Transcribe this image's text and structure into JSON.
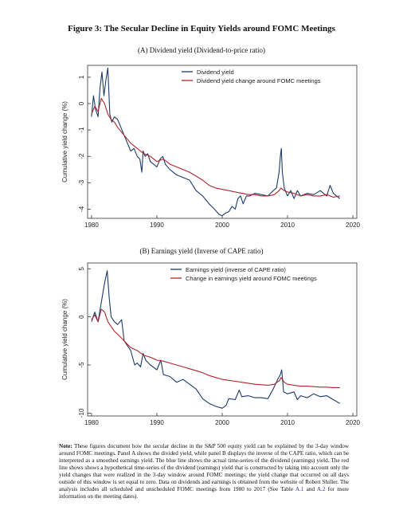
{
  "figure_title": "Figure 3: The Secular Decline in Equity Yields around FOMC Meetings",
  "note": {
    "label": "Note:",
    "text": " These figures document how the secular decline in the S&P 500 equity yield can be explained by the 3-day window around FOMC meetings. Panel A shows the divided yield, while panel B displays the inverse of the CAPE ratio, which can be interpreted as a smoothed earnings yield. The blue line shows the actual time-series of the dividend (earnings) yield. The red line shows shows a hypothetical time-series of the dividend (earnings) yield that is constructed by taking into account only the yield changes that were realized in the 3-day window around FOMC meetings; the yield change that occurred on all days outside of this window is set equal to zero. Data on dividends and earnings is obtained from the website of Robert Shiller. The analysis includes all scheduled and unscheduled FOMC meetings from 1980 to 2017 (See Table ",
    "ref1": "A.1",
    "mid": " and ",
    "ref2": "A.2",
    "tail": " for more information on the meeting dates)."
  },
  "colors": {
    "blue": "#1c3a6b",
    "red": "#b0262c",
    "axis": "#333333"
  },
  "chart_data": [
    {
      "type": "line",
      "title": "(A) Dividend yield (Dividend-to-price ratio)",
      "ylabel": "Cumulative yield change (%)",
      "xlabel": "",
      "xlim": [
        1979.4,
        2020.6
      ],
      "ylim": [
        -4.35,
        1.45
      ],
      "xticks": [
        1980,
        1990,
        2000,
        2010,
        2020
      ],
      "yticks": [
        1,
        0,
        -1,
        -2,
        -3,
        -4
      ],
      "legend_position": "top-right",
      "series": [
        {
          "name": "Dividend yield",
          "color": "#1c3a6b",
          "x": [
            1980,
            1980.3,
            1980.6,
            1981,
            1981.3,
            1981.6,
            1981.9,
            1982.2,
            1982.5,
            1982.8,
            1983.1,
            1983.5,
            1984,
            1984.5,
            1985,
            1985.5,
            1986,
            1986.5,
            1987,
            1987.4,
            1987.7,
            1987.9,
            1988.2,
            1988.6,
            1989,
            1989.5,
            1990,
            1990.5,
            1990.9,
            1991.3,
            1992,
            1993,
            1994,
            1995,
            1996,
            1997,
            1998,
            1998.8,
            1999.5,
            2000,
            2000.5,
            2001,
            2001.5,
            2002,
            2002.4,
            2002.8,
            2003.2,
            2003.7,
            2004.2,
            2005,
            2006,
            2007,
            2007.8,
            2008.3,
            2008.7,
            2008.9,
            2009.05,
            2009.2,
            2009.5,
            2010,
            2010.5,
            2011,
            2011.5,
            2012,
            2013,
            2014,
            2015,
            2016,
            2016.5,
            2017,
            2017.5,
            2018
          ],
          "y": [
            -0.5,
            0.3,
            -0.2,
            -0.5,
            0.6,
            1.2,
            0.3,
            0.9,
            1.35,
            -0.4,
            -0.7,
            -0.5,
            -0.6,
            -0.9,
            -1.2,
            -1.5,
            -1.8,
            -1.7,
            -2.0,
            -2.1,
            -2.6,
            -1.8,
            -2.0,
            -1.9,
            -2.2,
            -2.3,
            -2.4,
            -2.1,
            -2.0,
            -2.3,
            -2.5,
            -2.7,
            -2.8,
            -2.9,
            -3.3,
            -3.5,
            -3.8,
            -4.0,
            -4.2,
            -4.25,
            -4.15,
            -4.1,
            -3.9,
            -4.0,
            -3.6,
            -3.5,
            -3.8,
            -3.5,
            -3.5,
            -3.4,
            -3.45,
            -3.5,
            -3.3,
            -3.2,
            -2.6,
            -2.0,
            -1.7,
            -2.6,
            -3.2,
            -3.5,
            -3.3,
            -3.6,
            -3.3,
            -3.5,
            -3.4,
            -3.45,
            -3.3,
            -3.5,
            -3.1,
            -3.4,
            -3.5,
            -3.6
          ]
        },
        {
          "name": "Dividend yield change around FOMC meetings",
          "color": "#b0262c",
          "x": [
            1980,
            1980.5,
            1981,
            1981.5,
            1982,
            1982.5,
            1983,
            1983.5,
            1984,
            1985,
            1986,
            1987,
            1988,
            1989,
            1990,
            1991,
            1992,
            1993,
            1994,
            1995,
            1996,
            1997,
            1998,
            1999,
            2000,
            2001,
            2002,
            2003,
            2004,
            2005,
            2006,
            2007,
            2008,
            2008.7,
            2009,
            2009.5,
            2010,
            2011,
            2012,
            2013,
            2014,
            2015,
            2016,
            2017,
            2018
          ],
          "y": [
            -0.4,
            -0.1,
            -0.3,
            0.2,
            0.0,
            -0.4,
            -0.6,
            -0.7,
            -0.9,
            -1.2,
            -1.5,
            -1.7,
            -1.9,
            -2.0,
            -2.2,
            -2.1,
            -2.3,
            -2.4,
            -2.5,
            -2.6,
            -2.75,
            -2.9,
            -3.1,
            -3.2,
            -3.25,
            -3.3,
            -3.35,
            -3.4,
            -3.45,
            -3.45,
            -3.5,
            -3.5,
            -3.45,
            -3.3,
            -3.2,
            -3.3,
            -3.35,
            -3.4,
            -3.5,
            -3.45,
            -3.5,
            -3.5,
            -3.45,
            -3.55,
            -3.5
          ]
        }
      ]
    },
    {
      "type": "line",
      "title": "(B) Earnings yield (Inverse of CAPE ratio)",
      "ylabel": "Cumulative yield change (%)",
      "xlabel": "",
      "xlim": [
        1979.4,
        2020.6
      ],
      "ylim": [
        -10.3,
        5.6
      ],
      "xticks": [
        1980,
        1990,
        2000,
        2010,
        2020
      ],
      "yticks": [
        5,
        0,
        -5,
        -10
      ],
      "legend_position": "top-right",
      "series": [
        {
          "name": "Earnings yield (inverse of CAPE ratio)",
          "color": "#1c3a6b",
          "x": [
            1980,
            1980.5,
            1981,
            1981.5,
            1982,
            1982.4,
            1982.7,
            1983,
            1983.5,
            1984,
            1984.6,
            1985,
            1985.5,
            1986,
            1986.6,
            1987,
            1987.5,
            1987.9,
            1988.3,
            1989,
            1990,
            1990.6,
            1991,
            1992,
            1993,
            1994,
            1995,
            1996,
            1997,
            1998,
            1999,
            2000,
            2000.6,
            2001,
            2002,
            2002.6,
            2003,
            2004,
            2005,
            2006,
            2007,
            2007.8,
            2008.5,
            2008.9,
            2009.1,
            2009.4,
            2010,
            2011,
            2011.5,
            2012,
            2013,
            2014,
            2015,
            2016,
            2017,
            2018
          ],
          "y": [
            -0.5,
            0.5,
            -0.5,
            1.5,
            3.5,
            4.8,
            2.0,
            0.0,
            -0.5,
            -0.8,
            -0.3,
            -2.5,
            -3.0,
            -3.5,
            -5.0,
            -4.8,
            -5.2,
            -3.8,
            -4.5,
            -5.0,
            -5.5,
            -4.5,
            -6.0,
            -6.2,
            -6.8,
            -6.5,
            -7.0,
            -7.5,
            -8.5,
            -9.0,
            -9.3,
            -9.5,
            -9.2,
            -8.5,
            -8.6,
            -7.6,
            -8.3,
            -8.2,
            -8.4,
            -8.4,
            -8.5,
            -7.5,
            -6.5,
            -6.0,
            -5.5,
            -7.8,
            -8.0,
            -7.8,
            -8.6,
            -8.2,
            -8.4,
            -8.0,
            -8.3,
            -8.2,
            -8.6,
            -9.0
          ]
        },
        {
          "name": "Change in earnings yield around FOMC meetings",
          "color": "#b0262c",
          "x": [
            1980,
            1980.5,
            1981,
            1981.5,
            1982,
            1982.5,
            1983,
            1983.5,
            1984,
            1985,
            1986,
            1987,
            1988,
            1989,
            1990,
            1991,
            1992,
            1993,
            1994,
            1995,
            1996,
            1997,
            1998,
            1999,
            2000,
            2001,
            2002,
            2003,
            2004,
            2005,
            2006,
            2007,
            2008,
            2008.8,
            2009,
            2009.5,
            2010,
            2011,
            2012,
            2013,
            2014,
            2015,
            2016,
            2017,
            2018
          ],
          "y": [
            -0.3,
            0.2,
            -0.5,
            0.8,
            0.5,
            -0.5,
            -1.0,
            -1.5,
            -1.8,
            -2.5,
            -3.2,
            -3.5,
            -4.0,
            -4.2,
            -4.5,
            -4.6,
            -4.8,
            -5.0,
            -5.2,
            -5.4,
            -5.6,
            -5.8,
            -6.1,
            -6.3,
            -6.5,
            -6.6,
            -6.7,
            -6.8,
            -6.9,
            -7.0,
            -7.05,
            -7.1,
            -7.0,
            -6.6,
            -6.3,
            -6.8,
            -7.0,
            -7.1,
            -7.2,
            -7.2,
            -7.25,
            -7.3,
            -7.3,
            -7.35,
            -7.35
          ]
        }
      ]
    }
  ]
}
